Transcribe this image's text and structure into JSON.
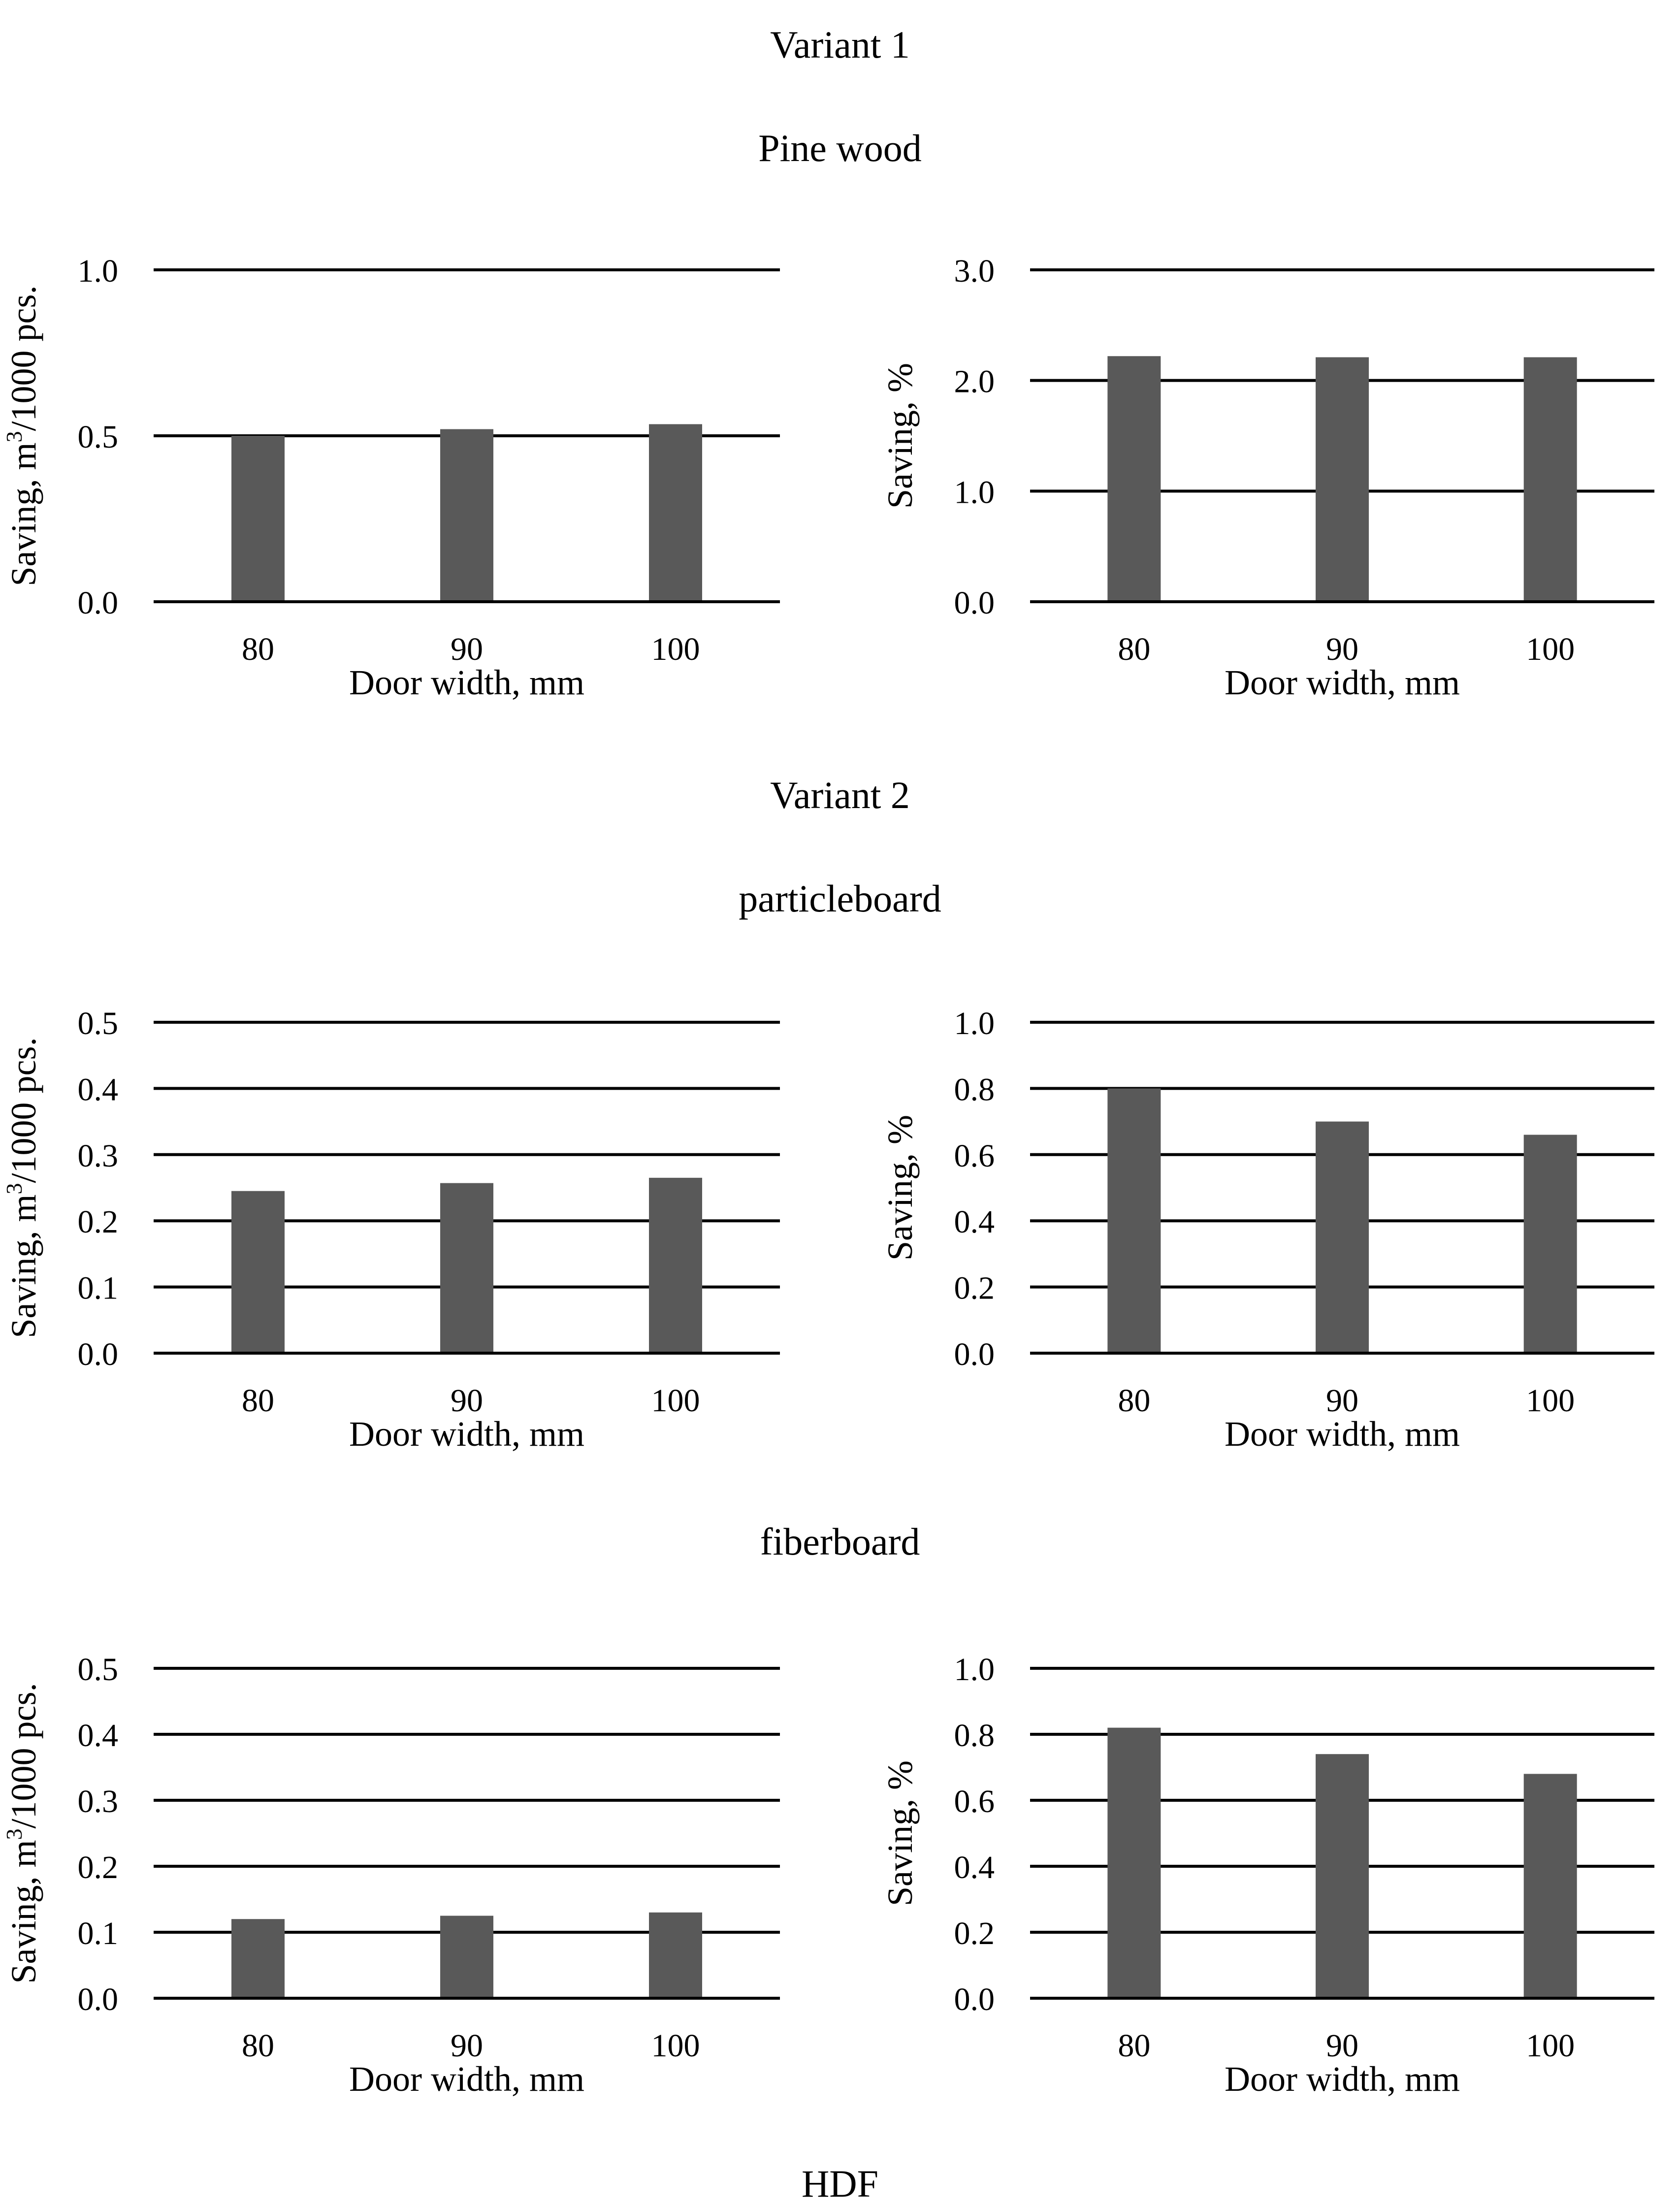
{
  "headings": {
    "variant1": "Variant 1",
    "pine": "Pine wood",
    "variant2": "Variant 2",
    "particleboard": "particleboard",
    "fiberboard": "fiberboard",
    "hdf": "HDF"
  },
  "colors": {
    "bar": "#595959",
    "grid": "#000000"
  },
  "chart_data": [
    {
      "id": "pine-volume",
      "group": "Pine wood",
      "type": "bar",
      "categories": [
        "80",
        "90",
        "100"
      ],
      "values": [
        0.5,
        0.52,
        0.535
      ],
      "ylim": [
        0,
        1.0
      ],
      "ticks": [
        0.0,
        0.5,
        1.0
      ],
      "tick_labels": [
        "0.0",
        "0.5",
        "1.0"
      ],
      "xlabel": "Door width, mm",
      "ylabel_prefix": "Saving, m",
      "ylabel_sup": "3",
      "ylabel_suffix": "/1000 pcs."
    },
    {
      "id": "pine-percent",
      "group": "Pine wood",
      "type": "bar",
      "categories": [
        "80",
        "90",
        "100"
      ],
      "values": [
        2.22,
        2.21,
        2.21
      ],
      "ylim": [
        0,
        3.0
      ],
      "ticks": [
        0.0,
        1.0,
        2.0,
        3.0
      ],
      "tick_labels": [
        "0.0",
        "1.0",
        "2.0",
        "3.0"
      ],
      "xlabel": "Door width, mm",
      "ylabel_prefix": "Saving, %",
      "ylabel_sup": "",
      "ylabel_suffix": ""
    },
    {
      "id": "particleboard-volume",
      "group": "particleboard",
      "type": "bar",
      "categories": [
        "80",
        "90",
        "100"
      ],
      "values": [
        0.245,
        0.257,
        0.265
      ],
      "ylim": [
        0,
        0.5
      ],
      "ticks": [
        0.0,
        0.1,
        0.2,
        0.3,
        0.4,
        0.5
      ],
      "tick_labels": [
        "0.0",
        "0.1",
        "0.2",
        "0.3",
        "0.4",
        "0.5"
      ],
      "xlabel": "Door width, mm",
      "ylabel_prefix": "Saving, m",
      "ylabel_sup": "3",
      "ylabel_suffix": "/1000 pcs."
    },
    {
      "id": "particleboard-percent",
      "group": "particleboard",
      "type": "bar",
      "categories": [
        "80",
        "90",
        "100"
      ],
      "values": [
        0.8,
        0.7,
        0.66
      ],
      "ylim": [
        0,
        1.0
      ],
      "ticks": [
        0.0,
        0.2,
        0.4,
        0.6,
        0.8,
        1.0
      ],
      "tick_labels": [
        "0.0",
        "0.2",
        "0.4",
        "0.6",
        "0.8",
        "1.0"
      ],
      "xlabel": "Door width, mm",
      "ylabel_prefix": "Saving, %",
      "ylabel_sup": "",
      "ylabel_suffix": ""
    },
    {
      "id": "fiberboard-volume",
      "group": "fiberboard",
      "type": "bar",
      "categories": [
        "80",
        "90",
        "100"
      ],
      "values": [
        0.12,
        0.125,
        0.13
      ],
      "ylim": [
        0,
        0.5
      ],
      "ticks": [
        0.0,
        0.1,
        0.2,
        0.3,
        0.4,
        0.5
      ],
      "tick_labels": [
        "0.0",
        "0.1",
        "0.2",
        "0.3",
        "0.4",
        "0.5"
      ],
      "xlabel": "Door width, mm",
      "ylabel_prefix": "Saving, m",
      "ylabel_sup": "3",
      "ylabel_suffix": "/1000 pcs."
    },
    {
      "id": "fiberboard-percent",
      "group": "fiberboard",
      "type": "bar",
      "categories": [
        "80",
        "90",
        "100"
      ],
      "values": [
        0.82,
        0.74,
        0.68
      ],
      "ylim": [
        0,
        1.0
      ],
      "ticks": [
        0.0,
        0.2,
        0.4,
        0.6,
        0.8,
        1.0
      ],
      "tick_labels": [
        "0.0",
        "0.2",
        "0.4",
        "0.6",
        "0.8",
        "1.0"
      ],
      "xlabel": "Door width, mm",
      "ylabel_prefix": "Saving, %",
      "ylabel_sup": "",
      "ylabel_suffix": ""
    }
  ]
}
